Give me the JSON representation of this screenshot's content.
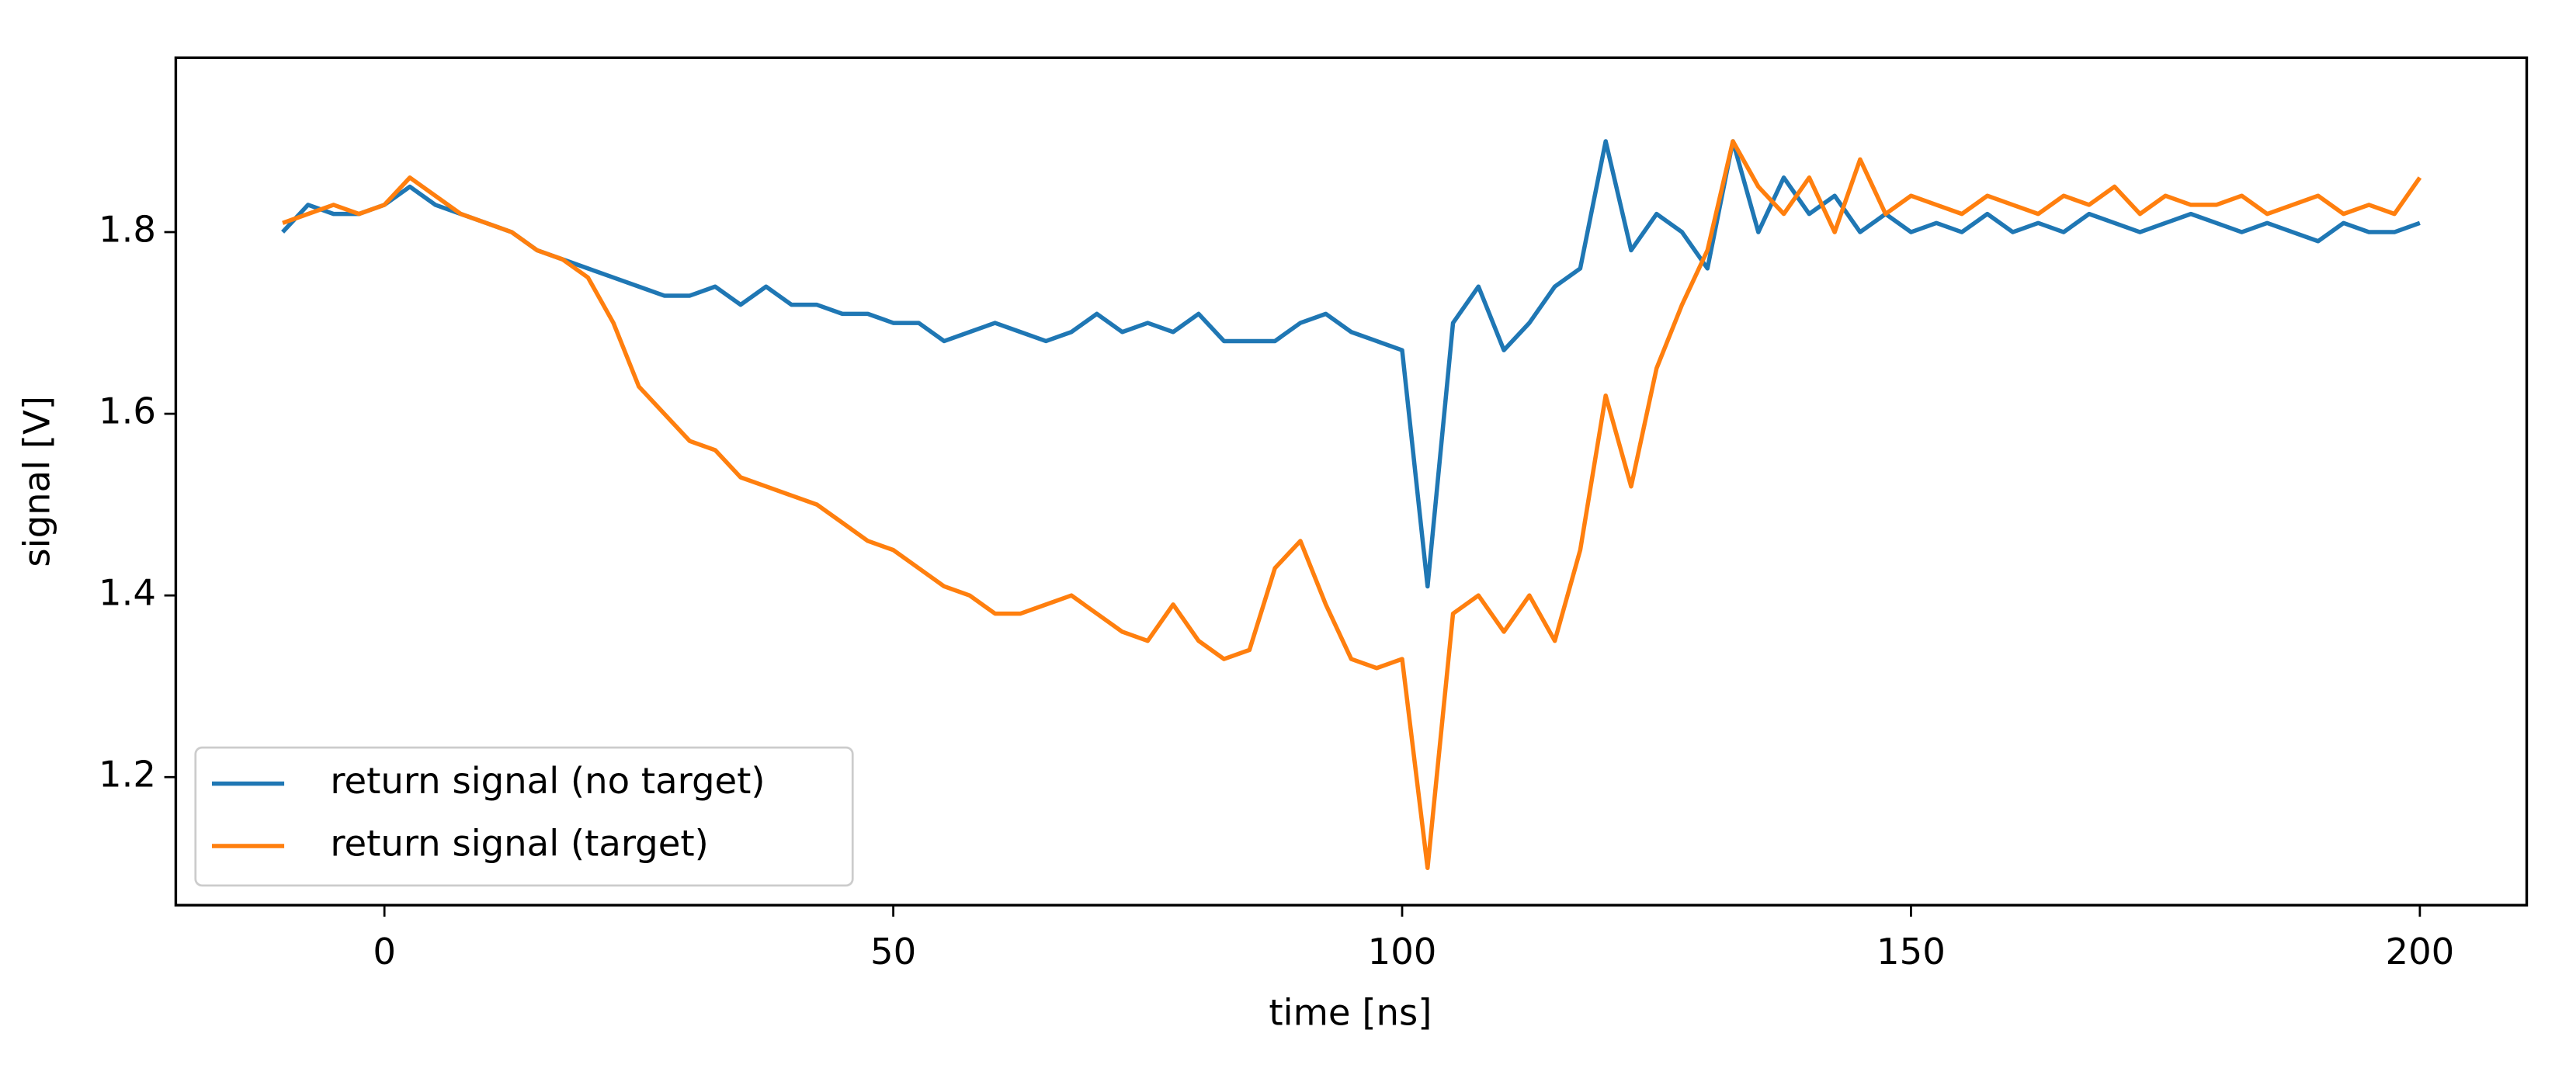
{
  "chart_data": {
    "type": "line",
    "xlabel": "time [ns]",
    "ylabel": "signal [V]",
    "x": [
      -10,
      -7.5,
      -5,
      -2.5,
      0,
      2.5,
      5,
      7.5,
      10,
      12.5,
      15,
      17.5,
      20,
      22.5,
      25,
      27.5,
      30,
      32.5,
      35,
      37.5,
      40,
      42.5,
      45,
      47.5,
      50,
      52.5,
      55,
      57.5,
      60,
      62.5,
      65,
      67.5,
      70,
      72.5,
      75,
      77.5,
      80,
      82.5,
      85,
      87.5,
      90,
      92.5,
      95,
      97.5,
      100,
      102.5,
      105,
      107.5,
      110,
      112.5,
      115,
      117.5,
      120,
      122.5,
      125,
      127.5,
      130,
      132.5,
      135,
      137.5,
      140,
      142.5,
      145,
      147.5,
      150,
      152.5,
      155,
      157.5,
      160,
      162.5,
      165,
      167.5,
      170,
      172.5,
      175,
      177.5,
      180,
      182.5,
      185,
      187.5,
      190,
      192.5,
      195,
      197.5,
      200
    ],
    "series": [
      {
        "name": "return signal (no target)",
        "color": "#1f77b4",
        "values": [
          1.8,
          1.83,
          1.82,
          1.82,
          1.83,
          1.85,
          1.83,
          1.82,
          1.81,
          1.8,
          1.78,
          1.77,
          1.76,
          1.75,
          1.74,
          1.73,
          1.73,
          1.74,
          1.72,
          1.74,
          1.72,
          1.72,
          1.71,
          1.71,
          1.7,
          1.7,
          1.68,
          1.69,
          1.7,
          1.69,
          1.68,
          1.69,
          1.71,
          1.69,
          1.7,
          1.69,
          1.71,
          1.68,
          1.68,
          1.68,
          1.7,
          1.71,
          1.69,
          1.68,
          1.67,
          1.41,
          1.7,
          1.74,
          1.67,
          1.7,
          1.74,
          1.76,
          1.9,
          1.78,
          1.82,
          1.8,
          1.76,
          1.9,
          1.8,
          1.86,
          1.82,
          1.84,
          1.8,
          1.82,
          1.8,
          1.81,
          1.8,
          1.82,
          1.8,
          1.81,
          1.8,
          1.82,
          1.81,
          1.8,
          1.81,
          1.82,
          1.81,
          1.8,
          1.81,
          1.8,
          1.79,
          1.81,
          1.8,
          1.8,
          1.81
        ]
      },
      {
        "name": "return signal (target)",
        "color": "#ff7f0e",
        "values": [
          1.81,
          1.82,
          1.83,
          1.82,
          1.83,
          1.86,
          1.84,
          1.82,
          1.81,
          1.8,
          1.78,
          1.77,
          1.75,
          1.7,
          1.63,
          1.6,
          1.57,
          1.56,
          1.53,
          1.52,
          1.51,
          1.5,
          1.48,
          1.46,
          1.45,
          1.43,
          1.41,
          1.4,
          1.38,
          1.38,
          1.39,
          1.4,
          1.38,
          1.36,
          1.35,
          1.39,
          1.35,
          1.33,
          1.34,
          1.43,
          1.46,
          1.39,
          1.33,
          1.32,
          1.33,
          1.1,
          1.38,
          1.4,
          1.36,
          1.4,
          1.35,
          1.45,
          1.62,
          1.52,
          1.65,
          1.72,
          1.78,
          1.9,
          1.85,
          1.82,
          1.86,
          1.8,
          1.88,
          1.82,
          1.84,
          1.83,
          1.82,
          1.84,
          1.83,
          1.82,
          1.84,
          1.83,
          1.85,
          1.82,
          1.84,
          1.83,
          1.83,
          1.84,
          1.82,
          1.83,
          1.84,
          1.82,
          1.83,
          1.82,
          1.86
        ]
      }
    ],
    "xlim": [
      -20.5,
      210.5
    ],
    "ylim": [
      1.059,
      1.992
    ],
    "xticks": [
      0,
      50,
      100,
      150,
      200
    ],
    "yticks": [
      1.2,
      1.4,
      1.6,
      1.8
    ],
    "legend": "lower left"
  }
}
